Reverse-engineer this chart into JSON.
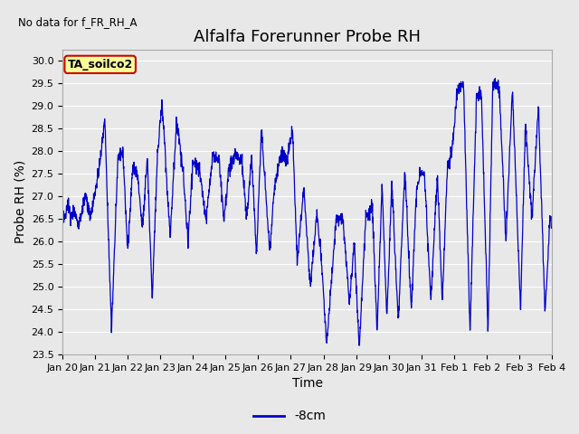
{
  "title": "Alfalfa Forerunner Probe RH",
  "no_data_text": "No data for f_FR_RH_A",
  "ylabel": "Probe RH (%)",
  "xlabel": "Time",
  "legend_label": "-8cm",
  "tag_label": "TA_soilco2",
  "ylim": [
    23.5,
    30.25
  ],
  "yticks": [
    23.5,
    24.0,
    24.5,
    25.0,
    25.5,
    26.0,
    26.5,
    27.0,
    27.5,
    28.0,
    28.5,
    29.0,
    29.5,
    30.0
  ],
  "xtick_labels": [
    "Jan 20",
    "Jan 21",
    "Jan 22",
    "Jan 23",
    "Jan 24",
    "Jan 25",
    "Jan 26",
    "Jan 27",
    "Jan 28",
    "Jan 29",
    "Jan 30",
    "Jan 31",
    "Feb 1",
    "Feb 2",
    "Feb 3",
    "Feb 4"
  ],
  "line_color": "#0000CC",
  "tag_bg_color": "#FFFF99",
  "tag_border_color": "#CC0000",
  "bg_color": "#E8E8E8",
  "title_fontsize": 13,
  "axis_fontsize": 10,
  "tick_fontsize": 8,
  "legend_fontsize": 10
}
